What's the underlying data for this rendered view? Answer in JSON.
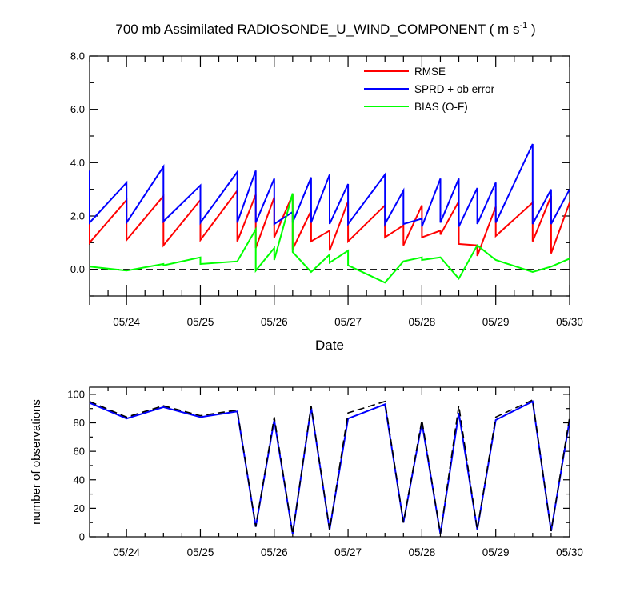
{
  "title_main": "700 mb Assimilated RADIOSONDE_U_WIND_COMPONENT ( m s",
  "title_sup": "-1",
  "title_end": " )",
  "chart_data": [
    {
      "type": "line",
      "xlabel": "Date",
      "ylabel": "",
      "xlim": [
        0,
        6.5
      ],
      "ylim": [
        -1,
        8
      ],
      "x_ticks": [
        {
          "x": 0.5,
          "label": "05/24"
        },
        {
          "x": 1.5,
          "label": "05/25"
        },
        {
          "x": 2.5,
          "label": "05/26"
        },
        {
          "x": 3.5,
          "label": "05/27"
        },
        {
          "x": 4.5,
          "label": "05/28"
        },
        {
          "x": 5.5,
          "label": "05/29"
        },
        {
          "x": 6.5,
          "label": "05/30"
        }
      ],
      "y_ticks": [
        "8.0",
        "6.0",
        "4.0",
        "2.0",
        "0.0"
      ],
      "y_tick_values": [
        8,
        6,
        4,
        2,
        0
      ],
      "reference_line": 0,
      "legend_position": "top-right",
      "series": [
        {
          "name": "RMSE",
          "color": "#ff0000",
          "x": [
            0,
            0,
            0.5,
            0.5,
            1.0,
            1.0,
            1.5,
            1.5,
            2.0,
            2.0,
            2.25,
            2.25,
            2.5,
            2.5,
            2.75,
            2.75,
            3.0,
            3.0,
            3.25,
            3.25,
            3.5,
            3.5,
            4.0,
            4.0,
            4.25,
            4.25,
            4.5,
            4.5,
            4.75,
            4.75,
            5.0,
            5.0,
            5.25,
            5.25,
            5.5,
            5.5,
            6.0,
            6.0,
            6.25,
            6.25,
            6.5
          ],
          "y": [
            2.0,
            1.0,
            2.6,
            1.1,
            2.75,
            0.9,
            2.6,
            1.1,
            2.95,
            1.05,
            2.8,
            0.8,
            2.7,
            1.2,
            2.8,
            0.75,
            2.2,
            1.05,
            1.45,
            0.7,
            2.55,
            1.05,
            2.4,
            1.2,
            1.65,
            0.9,
            2.4,
            1.2,
            1.45,
            1.3,
            2.55,
            0.95,
            0.9,
            0.5,
            2.35,
            1.25,
            2.5,
            1.05,
            2.75,
            0.6,
            2.5
          ]
        },
        {
          "name": "SPRD + ob error",
          "color": "#0000ff",
          "x": [
            0,
            0,
            0.5,
            0.5,
            1.0,
            1.0,
            1.5,
            1.5,
            2.0,
            2.0,
            2.25,
            2.25,
            2.5,
            2.5,
            2.75,
            2.75,
            3.0,
            3.0,
            3.25,
            3.25,
            3.5,
            3.5,
            4.0,
            4.0,
            4.25,
            4.25,
            4.5,
            4.5,
            4.75,
            4.75,
            5.0,
            5.0,
            5.25,
            5.25,
            5.5,
            5.5,
            6.0,
            6.0,
            6.25,
            6.25,
            6.5
          ],
          "y": [
            3.7,
            1.75,
            3.25,
            1.75,
            3.85,
            1.8,
            3.15,
            1.75,
            3.65,
            1.75,
            3.7,
            1.75,
            3.4,
            1.7,
            2.15,
            1.75,
            3.45,
            1.75,
            3.55,
            1.7,
            3.2,
            1.7,
            3.55,
            1.7,
            2.95,
            1.7,
            1.9,
            1.6,
            3.4,
            1.75,
            3.4,
            1.6,
            3.05,
            1.7,
            3.25,
            1.75,
            4.7,
            1.7,
            3.0,
            1.7,
            3.0
          ]
        },
        {
          "name": "BIAS (O-F)",
          "color": "#00ff00",
          "x": [
            0,
            0.5,
            1.0,
            1.0,
            1.5,
            1.5,
            2.0,
            2.25,
            2.25,
            2.5,
            2.5,
            2.75,
            2.75,
            3.0,
            3.25,
            3.25,
            3.5,
            3.5,
            4.0,
            4.25,
            4.5,
            4.5,
            4.75,
            5.0,
            5.25,
            5.5,
            5.5,
            6.0,
            6.25,
            6.5
          ],
          "y": [
            0.1,
            -0.05,
            0.2,
            0.15,
            0.45,
            0.2,
            0.3,
            1.5,
            -0.05,
            0.8,
            0.35,
            2.85,
            0.65,
            -0.1,
            0.55,
            0.25,
            0.7,
            0.15,
            -0.5,
            0.3,
            0.45,
            0.35,
            0.45,
            -0.35,
            0.9,
            0.35,
            0.35,
            -0.1,
            0.1,
            0.4
          ]
        }
      ]
    },
    {
      "type": "line",
      "xlabel": "",
      "ylabel": "number of observations",
      "xlim": [
        0,
        6.5
      ],
      "ylim": [
        0,
        105
      ],
      "x_ticks": [
        {
          "x": 0.5,
          "label": "05/24"
        },
        {
          "x": 1.5,
          "label": "05/25"
        },
        {
          "x": 2.5,
          "label": "05/26"
        },
        {
          "x": 3.5,
          "label": "05/27"
        },
        {
          "x": 4.5,
          "label": "05/28"
        },
        {
          "x": 5.5,
          "label": "05/29"
        },
        {
          "x": 6.5,
          "label": "05/30"
        }
      ],
      "y_ticks": [
        "100",
        "80",
        "60",
        "40",
        "20",
        "0"
      ],
      "y_tick_values": [
        100,
        80,
        60,
        40,
        20,
        0
      ],
      "series": [
        {
          "color": "#0000ff",
          "style": "solid",
          "x": [
            0,
            0.5,
            1.0,
            1.5,
            2.0,
            2.25,
            2.5,
            2.75,
            3.0,
            3.25,
            3.5,
            4.0,
            4.25,
            4.5,
            4.75,
            5.0,
            5.25,
            5.5,
            6.0,
            6.25,
            6.5
          ],
          "y": [
            94,
            83,
            91,
            84,
            88,
            7,
            82,
            2,
            91,
            5,
            83,
            93,
            10,
            80,
            2,
            87,
            5,
            82,
            95,
            4,
            82
          ]
        },
        {
          "color": "#000000",
          "style": "dashed",
          "x": [
            0,
            0.5,
            1.0,
            1.5,
            2.0,
            2.25,
            2.5,
            2.75,
            3.0,
            3.25,
            3.5,
            4.0,
            4.25,
            4.5,
            4.75,
            5.0,
            5.25,
            5.5,
            6.0,
            6.25,
            6.5
          ],
          "y": [
            95,
            84,
            92,
            85,
            89,
            7,
            84,
            2,
            92,
            5,
            87,
            95,
            10,
            82,
            2,
            92,
            5,
            84,
            96,
            4,
            84
          ]
        }
      ]
    }
  ]
}
